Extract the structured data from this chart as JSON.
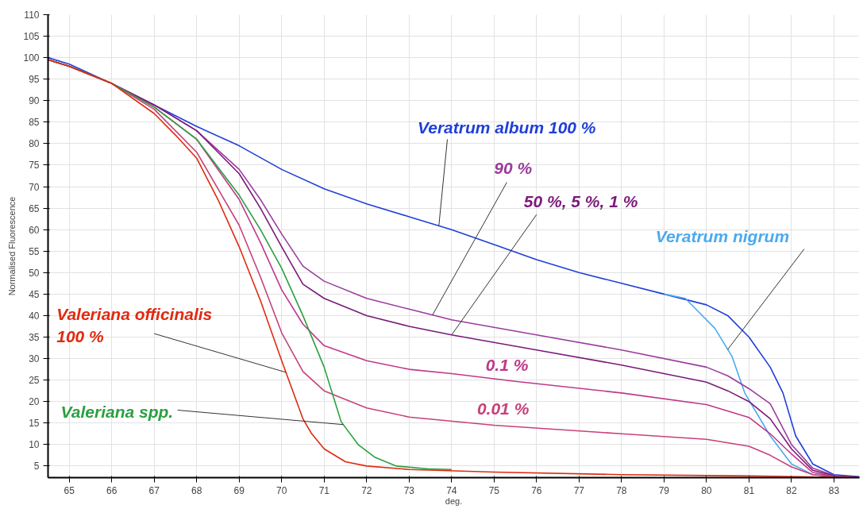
{
  "chart_data": {
    "type": "line",
    "xlabel": "deg.",
    "ylabel": "Normalised Fluorescence",
    "xlim": [
      64.5,
      83.6
    ],
    "ylim": [
      2.3,
      110
    ],
    "xticks": [
      65,
      66,
      67,
      68,
      69,
      70,
      71,
      72,
      73,
      74,
      75,
      76,
      77,
      78,
      79,
      80,
      81,
      82,
      83
    ],
    "yticks": [
      5,
      10,
      15,
      20,
      25,
      30,
      35,
      40,
      45,
      50,
      55,
      60,
      65,
      70,
      75,
      80,
      85,
      90,
      95,
      100,
      105,
      110
    ],
    "grid": true,
    "legend": false,
    "marker": "none",
    "line_style": "solid",
    "series": [
      {
        "name": "Veratrum album 100 %",
        "color": "#1f3fd8",
        "x": [
          64.5,
          65,
          66,
          67,
          68,
          69,
          70,
          71,
          72,
          73,
          74,
          75,
          76,
          77,
          78,
          79,
          80,
          80.5,
          81,
          81.5,
          81.8,
          82.1,
          82.5,
          83,
          83.6
        ],
        "values": [
          100,
          98.5,
          94,
          89,
          84,
          79.5,
          74,
          69.5,
          66,
          63,
          60,
          56.5,
          53,
          50,
          47.5,
          45,
          42.5,
          40,
          35,
          28,
          22,
          12,
          5.5,
          3,
          2.5
        ]
      },
      {
        "name": "Veratrum nigrum",
        "color": "#4aaaf0",
        "x": [
          79,
          79.5,
          79.8,
          80.2,
          80.6,
          80.9,
          81.5,
          82,
          82.5,
          83,
          83.6
        ],
        "values": [
          45,
          44,
          41,
          37,
          30.5,
          22,
          12,
          5.5,
          3,
          2.6,
          2.4
        ]
      },
      {
        "name": "90 %",
        "color": "#9b3c9e",
        "x": [
          64.5,
          65,
          66,
          67,
          68,
          69,
          69.5,
          70,
          70.5,
          71,
          72,
          73,
          74,
          76,
          78,
          80,
          80.5,
          81,
          81.5,
          82,
          82.5,
          83,
          83.6
        ],
        "values": [
          99.5,
          98,
          94,
          89,
          83,
          74,
          67,
          59,
          51.5,
          48,
          44,
          41.5,
          39,
          35.5,
          32,
          28,
          26,
          23,
          19.5,
          10,
          4.5,
          2.8,
          2.4
        ]
      },
      {
        "name": "50 %, 5 %, 1 %",
        "color": "#7a1a7a",
        "x": [
          64.5,
          65,
          66,
          67,
          68,
          69,
          69.5,
          70,
          70.5,
          71,
          72,
          73,
          74,
          76,
          78,
          80,
          80.5,
          81,
          81.5,
          82,
          82.5,
          83,
          83.6
        ],
        "values": [
          99.5,
          98,
          94,
          89,
          83,
          73,
          65,
          56,
          47.3,
          44,
          40,
          37.5,
          35.5,
          32,
          28.5,
          24.5,
          22.5,
          20,
          16,
          9,
          4,
          2.7,
          2.4
        ]
      },
      {
        "name": "0.1 %",
        "color": "#c0388a",
        "x": [
          64.5,
          65,
          66,
          67,
          68,
          69,
          69.5,
          70,
          70.5,
          71,
          72,
          73,
          74,
          75.5,
          78,
          80,
          81,
          81.5,
          82,
          82.5,
          83,
          83.6
        ],
        "values": [
          99.5,
          98,
          94,
          88.5,
          81,
          67,
          57,
          46,
          38,
          33,
          29.5,
          27.5,
          26.5,
          24.7,
          22,
          19.3,
          16.3,
          12.5,
          7.8,
          3.5,
          2.6,
          2.4
        ]
      },
      {
        "name": "0.01 %",
        "color": "#c8407a",
        "x": [
          64.5,
          65,
          66,
          67,
          68,
          69,
          69.5,
          70,
          70.5,
          71,
          72,
          73,
          75,
          78,
          80,
          81,
          81.5,
          82,
          82.5,
          83
        ],
        "values": [
          99.5,
          98,
          94,
          88,
          78,
          61,
          49,
          36,
          27,
          22.5,
          18.5,
          16.4,
          14.5,
          12.5,
          11.2,
          9.6,
          7.5,
          4.8,
          3,
          2.5
        ]
      },
      {
        "name": "Valeriana spp.",
        "color": "#2aa040",
        "x": [
          64.5,
          65,
          66,
          67,
          68,
          69,
          69.5,
          70,
          70.5,
          71,
          71.4,
          71.8,
          72.2,
          72.7,
          73.5,
          74
        ],
        "values": [
          99.5,
          98,
          94,
          88.5,
          81,
          68,
          60,
          51,
          40,
          28,
          15.3,
          10,
          7,
          5,
          4.3,
          4.2
        ]
      },
      {
        "name": "Valeriana officinalis\n100 %",
        "color": "#e02a10",
        "x": [
          64.5,
          65,
          66,
          67,
          67.5,
          68,
          68.5,
          69,
          69.5,
          70,
          70.5,
          70.7,
          71,
          71.5,
          72,
          73,
          75,
          78,
          81,
          83
        ],
        "values": [
          99.5,
          98,
          94,
          87,
          82,
          76.6,
          67,
          56,
          43.5,
          29.5,
          16,
          12.6,
          9,
          6,
          5,
          4.2,
          3.6,
          3,
          2.7,
          2.4
        ]
      }
    ]
  }
}
